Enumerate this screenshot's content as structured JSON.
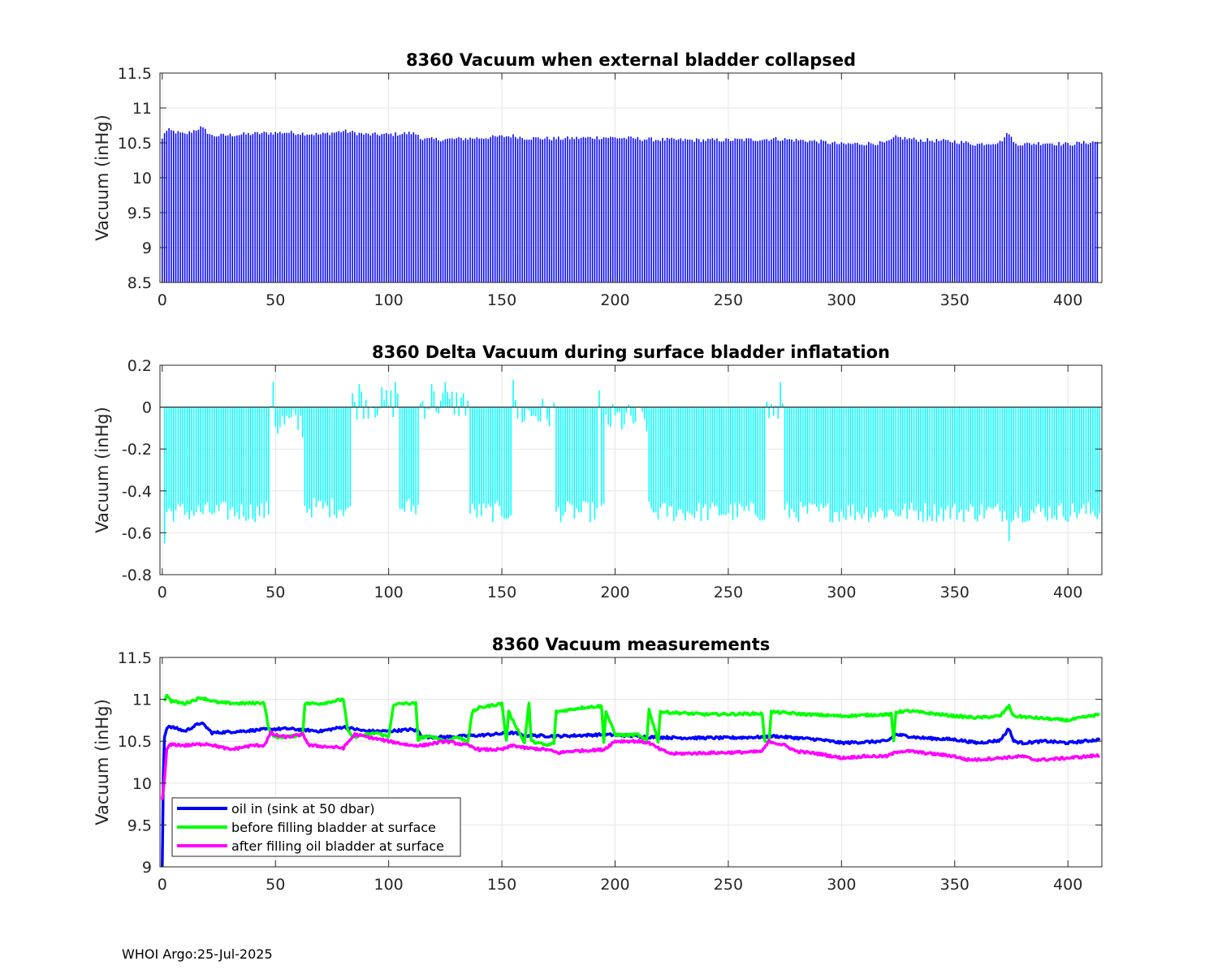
{
  "footer": "WHOI Argo:25-Jul-2025",
  "colors": {
    "blue": "#0000ff",
    "cyan": "#00ffff",
    "green": "#00ff00",
    "magenta": "#ff00ff"
  },
  "chart_data": [
    {
      "type": "bar",
      "title": "8360 Vacuum when external bladder collapsed",
      "ylabel": "Vacuum (inHg)",
      "xlabel": "",
      "xlim": [
        -1,
        415
      ],
      "ylim": [
        8.5,
        11.5
      ],
      "xticks": [
        "0",
        "50",
        "100",
        "150",
        "200",
        "250",
        "300",
        "350",
        "400"
      ],
      "yticks": [
        "8.5",
        "9",
        "9.5",
        "10",
        "10.5",
        "11",
        "11.5"
      ],
      "grid": true,
      "color": "#0000ff",
      "count": 414,
      "anchors_x": [
        0,
        1,
        3,
        10,
        17,
        19,
        22,
        35,
        45,
        55,
        70,
        80,
        90,
        100,
        110,
        113,
        115,
        125,
        140,
        155,
        160,
        175,
        195,
        210,
        215,
        230,
        250,
        265,
        270,
        290,
        300,
        320,
        324,
        335,
        350,
        360,
        370,
        374,
        376,
        380,
        390,
        400,
        414
      ],
      "anchors_y": [
        10.55,
        10.65,
        10.68,
        10.62,
        10.72,
        10.68,
        10.6,
        10.62,
        10.64,
        10.65,
        10.62,
        10.67,
        10.62,
        10.62,
        10.64,
        10.62,
        10.55,
        10.55,
        10.57,
        10.6,
        10.57,
        10.56,
        10.58,
        10.56,
        10.55,
        10.54,
        10.54,
        10.55,
        10.56,
        10.52,
        10.48,
        10.5,
        10.58,
        10.54,
        10.52,
        10.48,
        10.51,
        10.65,
        10.5,
        10.48,
        10.5,
        10.48,
        10.52
      ]
    },
    {
      "type": "bar",
      "title": "8360 Delta Vacuum during surface bladder inflatation",
      "ylabel": "Vacuum (inHg)",
      "xlabel": "",
      "xlim": [
        -1,
        415
      ],
      "ylim": [
        -0.8,
        0.2
      ],
      "xticks": [
        "0",
        "50",
        "100",
        "150",
        "200",
        "250",
        "300",
        "350",
        "400"
      ],
      "yticks": [
        "-0.8",
        "-0.6",
        "-0.4",
        "-0.2",
        "0",
        "0.2"
      ],
      "grid": true,
      "color": "#00ffff",
      "count": 414,
      "segments": [
        [
          1,
          47,
          -0.5
        ],
        [
          48,
          49,
          0.05
        ],
        [
          50,
          62,
          -0.08
        ],
        [
          63,
          83,
          -0.48
        ],
        [
          84,
          104,
          0.02
        ],
        [
          105,
          113,
          -0.48
        ],
        [
          114,
          135,
          0.02
        ],
        [
          136,
          155,
          -0.5
        ],
        [
          156,
          173,
          -0.03
        ],
        [
          174,
          195,
          -0.5
        ],
        [
          196,
          214,
          -0.06
        ],
        [
          215,
          266,
          -0.5
        ],
        [
          267,
          274,
          -0.02
        ],
        [
          275,
          414,
          -0.5
        ]
      ],
      "spikes_x": [
        1,
        49,
        87,
        103,
        119,
        125,
        155,
        193,
        273,
        374
      ],
      "spikes_y": [
        -0.65,
        0.12,
        0.11,
        0.12,
        0.11,
        0.12,
        0.13,
        0.08,
        0.12,
        -0.64
      ]
    },
    {
      "type": "line",
      "title": "8360 Vacuum measurements",
      "ylabel": "Vacuum (inHg)",
      "xlabel": "",
      "xlim": [
        -1,
        415
      ],
      "ylim": [
        9,
        11.5
      ],
      "xticks": [
        "0",
        "50",
        "100",
        "150",
        "200",
        "250",
        "300",
        "350",
        "400"
      ],
      "yticks": [
        "9",
        "9.5",
        "10",
        "10.5",
        "11",
        "11.5"
      ],
      "grid": true,
      "legend_location": "lower-left",
      "series": [
        {
          "name": "oil in (sink at 50 dbar)",
          "color": "#0000ff",
          "x": [
            0,
            0.5,
            1,
            2,
            3,
            10,
            17,
            19,
            22,
            35,
            45,
            55,
            70,
            80,
            90,
            100,
            110,
            113,
            115,
            125,
            140,
            155,
            160,
            175,
            195,
            210,
            215,
            230,
            250,
            265,
            270,
            290,
            300,
            320,
            324,
            335,
            350,
            360,
            370,
            374,
            376,
            380,
            390,
            400,
            414
          ],
          "y": [
            9.0,
            10.1,
            10.55,
            10.65,
            10.68,
            10.62,
            10.72,
            10.68,
            10.6,
            10.62,
            10.64,
            10.65,
            10.62,
            10.67,
            10.62,
            10.62,
            10.64,
            10.62,
            10.55,
            10.55,
            10.57,
            10.6,
            10.57,
            10.56,
            10.58,
            10.56,
            10.55,
            10.54,
            10.54,
            10.55,
            10.56,
            10.52,
            10.48,
            10.5,
            10.58,
            10.54,
            10.52,
            10.48,
            10.51,
            10.65,
            10.5,
            10.48,
            10.5,
            10.48,
            10.52
          ]
        },
        {
          "name": "before filling bladder at surface",
          "color": "#00ff00",
          "x": [
            1,
            2,
            4,
            10,
            17,
            25,
            35,
            45,
            47,
            49,
            55,
            62,
            63,
            70,
            80,
            82,
            84,
            95,
            100,
            102,
            105,
            112,
            113,
            114,
            120,
            125,
            130,
            135,
            137,
            140,
            150,
            152,
            153,
            160,
            162,
            163,
            170,
            173,
            174,
            185,
            194,
            195,
            196,
            200,
            205,
            210,
            214,
            215,
            219,
            220,
            240,
            265,
            266,
            268,
            269,
            285,
            300,
            320,
            322,
            323,
            324,
            330,
            350,
            360,
            370,
            374,
            376,
            385,
            400,
            414
          ],
          "y": [
            10.98,
            11.05,
            10.98,
            10.95,
            11.02,
            10.96,
            10.95,
            10.96,
            10.65,
            10.55,
            10.55,
            10.58,
            10.95,
            10.95,
            11.0,
            10.62,
            10.55,
            10.6,
            10.55,
            10.92,
            10.95,
            10.95,
            10.5,
            10.55,
            10.55,
            10.5,
            10.55,
            10.5,
            10.85,
            10.9,
            10.95,
            10.5,
            10.85,
            10.48,
            10.95,
            10.5,
            10.45,
            10.48,
            10.85,
            10.9,
            10.92,
            10.5,
            10.85,
            10.58,
            10.57,
            10.58,
            10.5,
            10.88,
            10.5,
            10.85,
            10.82,
            10.83,
            10.5,
            10.5,
            10.85,
            10.82,
            10.8,
            10.82,
            10.82,
            10.5,
            10.85,
            10.86,
            10.8,
            10.78,
            10.8,
            10.92,
            10.8,
            10.78,
            10.75,
            10.82
          ]
        },
        {
          "name": "after filling oil bladder at surface",
          "color": "#ff00ff",
          "x": [
            0,
            1,
            2,
            3,
            5,
            10,
            20,
            30,
            40,
            45,
            48,
            50,
            55,
            62,
            65,
            80,
            85,
            100,
            110,
            115,
            125,
            135,
            140,
            150,
            155,
            160,
            170,
            175,
            180,
            195,
            200,
            210,
            215,
            220,
            225,
            240,
            260,
            265,
            268,
            275,
            280,
            290,
            300,
            310,
            320,
            325,
            330,
            340,
            350,
            355,
            360,
            370,
            380,
            385,
            390,
            400,
            414
          ],
          "y": [
            9.8,
            10.05,
            10.4,
            10.45,
            10.46,
            10.45,
            10.47,
            10.4,
            10.45,
            10.45,
            10.6,
            10.57,
            10.55,
            10.58,
            10.45,
            10.42,
            10.58,
            10.5,
            10.45,
            10.45,
            10.5,
            10.45,
            10.4,
            10.4,
            10.45,
            10.42,
            10.4,
            10.36,
            10.38,
            10.4,
            10.5,
            10.5,
            10.48,
            10.4,
            10.35,
            10.36,
            10.37,
            10.38,
            10.5,
            10.45,
            10.38,
            10.35,
            10.3,
            10.32,
            10.32,
            10.38,
            10.38,
            10.35,
            10.32,
            10.28,
            10.28,
            10.3,
            10.32,
            10.28,
            10.28,
            10.3,
            10.33
          ]
        }
      ]
    }
  ]
}
